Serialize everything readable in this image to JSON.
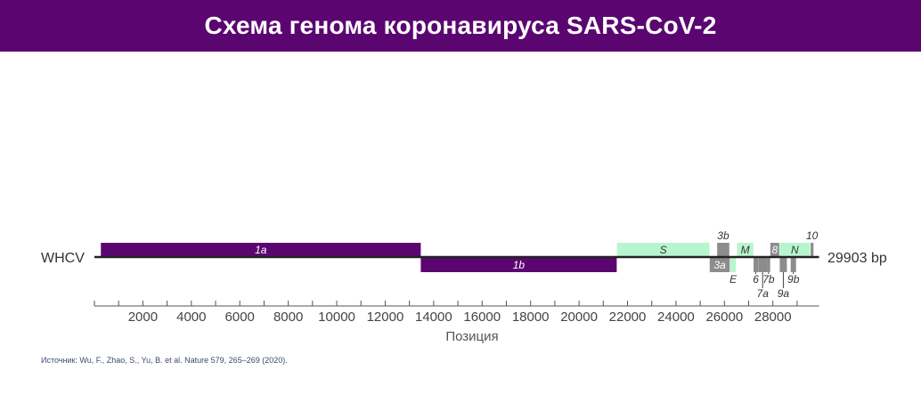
{
  "header": {
    "title": "Схема генома коронавируса SARS-CoV-2"
  },
  "genome": {
    "name": "WHCV",
    "length_label": "29903 bp",
    "length": 29903,
    "colors": {
      "orf1": "#5b0670",
      "structural": "#b7f5cf",
      "accessory": "#8c8c8c",
      "header": "#5b0670",
      "axis": "#222222"
    },
    "features": [
      {
        "label": "1a",
        "start": 266,
        "end": 13468,
        "strand": "top",
        "color": "orf1",
        "label_pos": "inside",
        "label_color": "#ffffff"
      },
      {
        "label": "1b",
        "start": 13468,
        "end": 21555,
        "strand": "bottom",
        "color": "orf1",
        "label_pos": "inside",
        "label_color": "#ffffff"
      },
      {
        "label": "S",
        "start": 21563,
        "end": 25384,
        "strand": "top",
        "color": "structural",
        "label_pos": "inside",
        "label_color": "#333333"
      },
      {
        "label": "3b",
        "start": 25700,
        "end": 26200,
        "strand": "top",
        "color": "accessory",
        "label_pos": "above",
        "label_color": "#333333"
      },
      {
        "label": "3a",
        "start": 25393,
        "end": 26220,
        "strand": "bottom",
        "color": "accessory",
        "label_pos": "inside",
        "label_color": "#ffffff"
      },
      {
        "label": "E",
        "start": 26245,
        "end": 26472,
        "strand": "bottom",
        "color": "structural",
        "label_pos": "below",
        "label_color": "#333333"
      },
      {
        "label": "M",
        "start": 26523,
        "end": 27191,
        "strand": "top",
        "color": "structural",
        "label_pos": "inside",
        "label_color": "#333333"
      },
      {
        "label": "6",
        "start": 27202,
        "end": 27387,
        "strand": "bottom",
        "color": "accessory",
        "label_pos": "below",
        "label_color": "#333333"
      },
      {
        "label": "7a",
        "start": 27394,
        "end": 27759,
        "strand": "bottom",
        "color": "accessory",
        "label_pos": "below2",
        "label_color": "#333333"
      },
      {
        "label": "7b",
        "start": 27756,
        "end": 27887,
        "strand": "bottom",
        "color": "accessory",
        "label_pos": "below",
        "label_color": "#333333"
      },
      {
        "label": "8",
        "start": 27894,
        "end": 28259,
        "strand": "top",
        "color": "accessory",
        "label_pos": "inside",
        "label_color": "#ffffff"
      },
      {
        "label": "N",
        "start": 28274,
        "end": 29533,
        "strand": "top",
        "color": "structural",
        "label_pos": "inside",
        "label_color": "#333333"
      },
      {
        "label": "9a",
        "start": 28284,
        "end": 28577,
        "strand": "bottom",
        "color": "accessory",
        "label_pos": "below2",
        "label_color": "#333333"
      },
      {
        "label": "9b",
        "start": 28734,
        "end": 28955,
        "strand": "bottom",
        "color": "accessory",
        "label_pos": "below",
        "label_color": "#333333"
      },
      {
        "label": "10",
        "start": 29558,
        "end": 29674,
        "strand": "top",
        "color": "accessory",
        "label_pos": "above",
        "label_color": "#333333"
      }
    ]
  },
  "axis": {
    "label": "Позиция",
    "ticks": [
      2000,
      4000,
      6000,
      8000,
      10000,
      12000,
      14000,
      16000,
      18000,
      20000,
      22000,
      24000,
      26000,
      28000
    ],
    "tick_labels": [
      "2000",
      "4000",
      "6000",
      "8000",
      "10000",
      "12000",
      "14000",
      "16000",
      "18000",
      "20000",
      "22000",
      "24000",
      "26000",
      "28000"
    ],
    "minor_step": 1000
  },
  "source": "Источник: Wu, F., Zhao, S., Yu, B. et al. Nature 579, 265–269 (2020)."
}
